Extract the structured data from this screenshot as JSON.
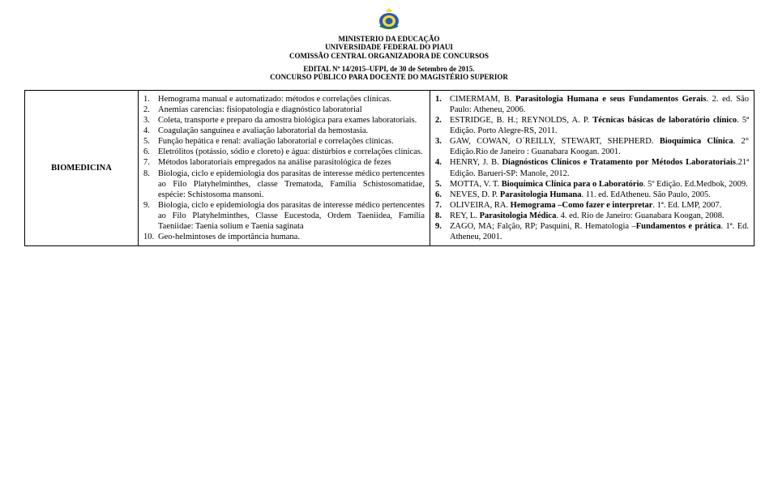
{
  "header": {
    "ministry": "MINISTERIO DA EDUCAÇÃO",
    "university": "UNIVERSIDADE FEDERAL DO PIAUI",
    "commission": "COMISSÃO CENTRAL ORGANIZADORA DE CONCURSOS",
    "edital": "EDITAL Nº 14/2015–UFPI, de 30 de Setembro de 2015.",
    "concurso": "CONCURSO PÚBLICO PARA DOCENTE DO MAGISTÉRIO SUPERIOR"
  },
  "table": {
    "area": "BIOMEDICINA",
    "topics": [
      {
        "n": "1.",
        "text": "Hemograma manual e automatizado: métodos e correlações clínicas."
      },
      {
        "n": "2.",
        "text": "Anemias carencias: fisiopatologia e diagnóstico laboratorial"
      },
      {
        "n": "3.",
        "text": "Coleta, transporte e preparo da amostra biológica para exames laboratoriais."
      },
      {
        "n": "4.",
        "text": "Coagulação sanguínea e avaliação laboratorial da hemostasia."
      },
      {
        "n": "5.",
        "text": "Função hepática e renal: avaliação laboratorial e correlações clínicas."
      },
      {
        "n": "6.",
        "text": "Eletrólitos (potássio, sódio e cloreto) e água: distúrbios e correlações clínicas."
      },
      {
        "n": "7.",
        "text": "Métodos laboratoriais empregados na análise parasitológica de fezes"
      },
      {
        "n": "8.",
        "text": "Biologia, ciclo e epidemiologia dos parasitas de interesse médico pertencentes ao Filo Platyhelminthes, classe Trematoda, Família Schistosomatidae, espécie: Schistosoma mansoni."
      },
      {
        "n": "9.",
        "text": "Biologia, ciclo e epidemiologia dos parasitas de interesse médico pertencentes ao Filo Platyhelminthes, Classe Eucestoda, Ordem Taeniidea, Família Taeniidae: Taenia solium e Taenia saginata"
      },
      {
        "n": "10.",
        "text": "Geo-helmintoses de importância humana."
      }
    ],
    "refs": [
      {
        "n": "1.",
        "html": "CIMERMAM, B. <b>Parasitologia Humana e seus Fundamentos Gerais</b>. 2. ed. São Paulo: Atheneu, 2006."
      },
      {
        "n": "2.",
        "html": "ESTRIDGE, B. H.; REYNOLDS, A. P. <b>Técnicas básicas de laboratório clínico</b>. 5ª Edição. Porto Alegre-RS, 2011."
      },
      {
        "n": "3.",
        "html": "GAW, COWAN, O´REILLY, STEWART, SHEPHERD. <b>Bioquímica Clínica</b>. 2° Edição.Rio de Janeiro : Guanabara Koogan. 2001."
      },
      {
        "n": "4.",
        "html": "HENRY, J. B. <b>Diagnósticos Clínicos e Tratamento por Métodos Laboratoriais</b>.21ª Edição. Barueri-SP: Manole, 2012."
      },
      {
        "n": "5.",
        "html": "MOTTA, V. T. <b>Bioquímica Clínica para o Laboratório</b>. 5º Edição. Ed.Medbok, 2009."
      },
      {
        "n": "6.",
        "html": "NEVES, D. P. <b>Parasitologia Humana</b>. 11. ed. EdAtheneu. São Paulo, 2005."
      },
      {
        "n": "7.",
        "html": "OLIVEIRA, RA. <b>Hemograma –Como fazer e interpretar</b>. 1ª. Ed. LMP, 2007."
      },
      {
        "n": "8.",
        "html": "REY, L. <b>Parasitologia Médica</b>. 4. ed. Rio de Janeiro: Guanabara Koogan, 2008."
      },
      {
        "n": "9.",
        "html": "ZAGO, MA; Falção, RP; Pasquini, R. Hematologia –<b>Fundamentos e prática</b>. 1ª. Ed. Atheneu, 2001."
      }
    ]
  },
  "colors": {
    "text": "#000000",
    "background": "#ffffff",
    "border": "#000000"
  }
}
